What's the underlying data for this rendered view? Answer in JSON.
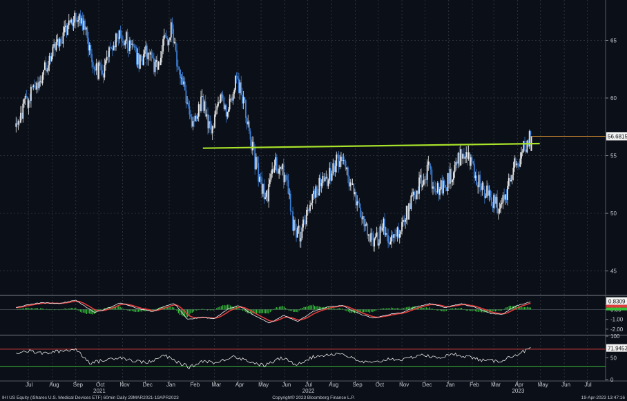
{
  "chart_data": [
    {
      "type": "candlestick",
      "name": "price",
      "y_ticks": [
        "65",
        "60",
        "55",
        "50",
        "45"
      ],
      "ylim": [
        43,
        68.5
      ],
      "last_value_label": "56.6815",
      "last_value": 56.6815,
      "resistance_line": {
        "from": [
          "2022-02-14",
          55.65
        ],
        "to": [
          "2023-04-30",
          56.05
        ]
      },
      "series": [
        {
          "x": "2021-06-15",
          "y": 57.5
        },
        {
          "x": "2021-06-25",
          "y": 59.3
        },
        {
          "x": "2021-07-05",
          "y": 60.6
        },
        {
          "x": "2021-07-15",
          "y": 61.2
        },
        {
          "x": "2021-07-28",
          "y": 63.5
        },
        {
          "x": "2021-08-10",
          "y": 64.8
        },
        {
          "x": "2021-08-22",
          "y": 66.0
        },
        {
          "x": "2021-09-03",
          "y": 67.0
        },
        {
          "x": "2021-09-12",
          "y": 66.2
        },
        {
          "x": "2021-09-22",
          "y": 63.0
        },
        {
          "x": "2021-10-05",
          "y": 62.0
        },
        {
          "x": "2021-10-15",
          "y": 64.5
        },
        {
          "x": "2021-10-28",
          "y": 65.6
        },
        {
          "x": "2021-11-10",
          "y": 64.8
        },
        {
          "x": "2021-11-22",
          "y": 63.2
        },
        {
          "x": "2021-12-05",
          "y": 64.2
        },
        {
          "x": "2021-12-15",
          "y": 62.5
        },
        {
          "x": "2021-12-25",
          "y": 64.6
        },
        {
          "x": "2022-01-03",
          "y": 66.0
        },
        {
          "x": "2022-01-12",
          "y": 63.0
        },
        {
          "x": "2022-01-22",
          "y": 60.5
        },
        {
          "x": "2022-02-01",
          "y": 57.5
        },
        {
          "x": "2022-02-12",
          "y": 60.0
        },
        {
          "x": "2022-02-25",
          "y": 57.0
        },
        {
          "x": "2022-03-08",
          "y": 60.5
        },
        {
          "x": "2022-03-18",
          "y": 58.5
        },
        {
          "x": "2022-03-28",
          "y": 61.5
        },
        {
          "x": "2022-04-08",
          "y": 60.0
        },
        {
          "x": "2022-04-18",
          "y": 56.2
        },
        {
          "x": "2022-04-28",
          "y": 53.0
        },
        {
          "x": "2022-05-08",
          "y": 51.2
        },
        {
          "x": "2022-05-20",
          "y": 54.5
        },
        {
          "x": "2022-06-02",
          "y": 53.2
        },
        {
          "x": "2022-06-12",
          "y": 49.0
        },
        {
          "x": "2022-06-22",
          "y": 48.2
        },
        {
          "x": "2022-07-02",
          "y": 50.5
        },
        {
          "x": "2022-07-14",
          "y": 52.2
        },
        {
          "x": "2022-07-28",
          "y": 53.0
        },
        {
          "x": "2022-08-12",
          "y": 55.0
        },
        {
          "x": "2022-08-22",
          "y": 53.5
        },
        {
          "x": "2022-09-02",
          "y": 51.0
        },
        {
          "x": "2022-09-15",
          "y": 49.2
        },
        {
          "x": "2022-09-25",
          "y": 47.2
        },
        {
          "x": "2022-10-08",
          "y": 49.0
        },
        {
          "x": "2022-10-18",
          "y": 47.5
        },
        {
          "x": "2022-10-30",
          "y": 48.5
        },
        {
          "x": "2022-11-10",
          "y": 50.5
        },
        {
          "x": "2022-11-22",
          "y": 52.5
        },
        {
          "x": "2022-12-05",
          "y": 53.8
        },
        {
          "x": "2022-12-15",
          "y": 51.8
        },
        {
          "x": "2022-12-28",
          "y": 52.5
        },
        {
          "x": "2023-01-10",
          "y": 54.0
        },
        {
          "x": "2023-01-22",
          "y": 55.5
        },
        {
          "x": "2023-02-02",
          "y": 53.8
        },
        {
          "x": "2023-02-14",
          "y": 52.0
        },
        {
          "x": "2023-02-24",
          "y": 51.5
        },
        {
          "x": "2023-03-08",
          "y": 50.6
        },
        {
          "x": "2023-03-18",
          "y": 52.0
        },
        {
          "x": "2023-03-28",
          "y": 54.0
        },
        {
          "x": "2023-04-06",
          "y": 55.2
        },
        {
          "x": "2023-04-12",
          "y": 56.0
        },
        {
          "x": "2023-04-19",
          "y": 56.68
        }
      ]
    },
    {
      "type": "line",
      "name": "macd",
      "y_ticks": [
        "0.50",
        "0.00",
        "-1.00",
        "-2.00"
      ],
      "ylim": [
        -2.5,
        1.3
      ],
      "last_value_label": "0.8309",
      "series": [
        {
          "x": "2021-06-15",
          "y": 0.2
        },
        {
          "x": "2021-07-01",
          "y": 0.5
        },
        {
          "x": "2021-07-20",
          "y": 0.7
        },
        {
          "x": "2021-08-10",
          "y": 0.6
        },
        {
          "x": "2021-09-01",
          "y": 0.95
        },
        {
          "x": "2021-09-25",
          "y": -0.3
        },
        {
          "x": "2021-10-12",
          "y": 0.1
        },
        {
          "x": "2021-10-30",
          "y": 0.7
        },
        {
          "x": "2021-11-20",
          "y": 0.1
        },
        {
          "x": "2021-12-10",
          "y": -0.2
        },
        {
          "x": "2021-12-28",
          "y": 0.4
        },
        {
          "x": "2022-01-08",
          "y": 0.6
        },
        {
          "x": "2022-01-25",
          "y": -1.0
        },
        {
          "x": "2022-02-12",
          "y": -0.8
        },
        {
          "x": "2022-03-01",
          "y": -0.9
        },
        {
          "x": "2022-03-20",
          "y": 0.1
        },
        {
          "x": "2022-04-02",
          "y": 0.4
        },
        {
          "x": "2022-04-22",
          "y": -0.6
        },
        {
          "x": "2022-05-12",
          "y": -1.4
        },
        {
          "x": "2022-05-30",
          "y": -0.6
        },
        {
          "x": "2022-06-18",
          "y": -1.2
        },
        {
          "x": "2022-07-08",
          "y": -0.2
        },
        {
          "x": "2022-07-28",
          "y": 0.3
        },
        {
          "x": "2022-08-15",
          "y": 0.4
        },
        {
          "x": "2022-09-05",
          "y": -0.4
        },
        {
          "x": "2022-09-25",
          "y": -0.9
        },
        {
          "x": "2022-10-15",
          "y": -0.5
        },
        {
          "x": "2022-11-02",
          "y": -0.3
        },
        {
          "x": "2022-11-20",
          "y": 0.3
        },
        {
          "x": "2022-12-08",
          "y": 0.6
        },
        {
          "x": "2022-12-28",
          "y": 0.2
        },
        {
          "x": "2023-01-18",
          "y": 0.6
        },
        {
          "x": "2023-02-05",
          "y": 0.2
        },
        {
          "x": "2023-02-25",
          "y": -0.4
        },
        {
          "x": "2023-03-12",
          "y": -0.5
        },
        {
          "x": "2023-03-28",
          "y": 0.3
        },
        {
          "x": "2023-04-19",
          "y": 0.83
        }
      ]
    },
    {
      "type": "line",
      "name": "rsi",
      "y_ticks": [
        "100",
        "50",
        "0"
      ],
      "ylim": [
        0,
        100
      ],
      "overbought": 70,
      "oversold": 30,
      "last_value_label": "71.9453",
      "series": [
        {
          "x": "2021-06-15",
          "y": 62
        },
        {
          "x": "2021-07-01",
          "y": 66
        },
        {
          "x": "2021-07-20",
          "y": 60
        },
        {
          "x": "2021-08-10",
          "y": 65
        },
        {
          "x": "2021-09-01",
          "y": 70
        },
        {
          "x": "2021-09-20",
          "y": 38
        },
        {
          "x": "2021-10-10",
          "y": 45
        },
        {
          "x": "2021-10-28",
          "y": 52
        },
        {
          "x": "2021-11-18",
          "y": 42
        },
        {
          "x": "2021-12-08",
          "y": 40
        },
        {
          "x": "2021-12-25",
          "y": 56
        },
        {
          "x": "2022-01-10",
          "y": 42
        },
        {
          "x": "2022-01-28",
          "y": 28
        },
        {
          "x": "2022-02-15",
          "y": 44
        },
        {
          "x": "2022-03-05",
          "y": 38
        },
        {
          "x": "2022-03-25",
          "y": 55
        },
        {
          "x": "2022-04-12",
          "y": 44
        },
        {
          "x": "2022-05-05",
          "y": 32
        },
        {
          "x": "2022-05-28",
          "y": 50
        },
        {
          "x": "2022-06-15",
          "y": 35
        },
        {
          "x": "2022-07-08",
          "y": 52
        },
        {
          "x": "2022-07-28",
          "y": 58
        },
        {
          "x": "2022-08-15",
          "y": 60
        },
        {
          "x": "2022-09-05",
          "y": 42
        },
        {
          "x": "2022-09-25",
          "y": 38
        },
        {
          "x": "2022-10-15",
          "y": 48
        },
        {
          "x": "2022-11-05",
          "y": 46
        },
        {
          "x": "2022-11-25",
          "y": 58
        },
        {
          "x": "2022-12-15",
          "y": 50
        },
        {
          "x": "2023-01-10",
          "y": 58
        },
        {
          "x": "2023-01-28",
          "y": 52
        },
        {
          "x": "2023-02-15",
          "y": 44
        },
        {
          "x": "2023-03-08",
          "y": 42
        },
        {
          "x": "2023-03-28",
          "y": 56
        },
        {
          "x": "2023-04-19",
          "y": 72
        }
      ]
    }
  ],
  "x_axis": {
    "start": "2021-05-25",
    "end": "2023-07-25",
    "month_labels": [
      "Jul",
      "Aug",
      "Sep",
      "Oct",
      "Nov",
      "Dec",
      "Jan",
      "Feb",
      "Mar",
      "Apr",
      "May",
      "Jun",
      "Jul",
      "Aug",
      "Sep",
      "Oct",
      "Nov",
      "Dec",
      "Jan",
      "Feb",
      "Mar",
      "Apr",
      "May",
      "Jun",
      "Jul"
    ],
    "month_dates": [
      "2021-07-01",
      "2021-08-01",
      "2021-09-01",
      "2021-10-01",
      "2021-11-01",
      "2021-12-01",
      "2022-01-01",
      "2022-02-01",
      "2022-03-01",
      "2022-04-01",
      "2022-05-01",
      "2022-06-01",
      "2022-07-01",
      "2022-08-01",
      "2022-09-01",
      "2022-10-01",
      "2022-11-01",
      "2022-12-01",
      "2023-01-01",
      "2023-02-01",
      "2023-03-01",
      "2023-04-01",
      "2023-05-01",
      "2023-06-01",
      "2023-07-01"
    ],
    "year_labels": [
      "2021",
      "2022",
      "2023"
    ],
    "year_dates": [
      "2021-10-01",
      "2022-07-01",
      "2023-04-01"
    ]
  },
  "footer": {
    "left": "IHI US Equity (iShares U.S. Medical Devices ETF) 60min  Daily 29MAR2021-19APR2023",
    "center": "Copyright© 2023 Bloomberg Finance L.P.",
    "right": "19-Apr-2023 13:47:16"
  },
  "colors": {
    "background": "#0b0f17",
    "up_candle": "#e8e8e8",
    "down_candle": "#3d7fd6",
    "resistance_line": "#a8e22a",
    "last_price_line": "#c8862e",
    "macd_line": "#f2f2f2",
    "signal_line": "#e23c3c",
    "histogram": "#36c23a",
    "rsi_line": "#e8e8e8",
    "overbought_line": "#d23c3c",
    "oversold_line": "#3dc23d"
  }
}
